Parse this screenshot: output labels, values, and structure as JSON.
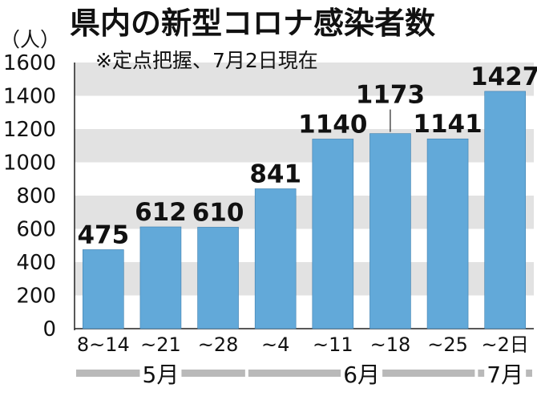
{
  "chart_data": {
    "type": "bar",
    "title": "県内の新型コロナ感染者数",
    "subtitle": "※定点把握、7月2日現在",
    "ylabel": "（人）",
    "ylim": [
      0,
      1600
    ],
    "yticks": [
      0,
      200,
      400,
      600,
      800,
      1000,
      1200,
      1400,
      1600
    ],
    "grid": "alternating horizontal bands",
    "categories": [
      "8~14",
      "~21",
      "~28",
      "~4",
      "~11",
      "~18",
      "~25",
      "~2日"
    ],
    "values": [
      475,
      612,
      610,
      841,
      1140,
      1173,
      1141,
      1427
    ],
    "data_labels": [
      "475",
      "612",
      "610",
      "841",
      "1140",
      "1173",
      "1141",
      "1427"
    ],
    "month_groups": [
      {
        "label": "5月",
        "count": 3
      },
      {
        "label": "6月",
        "count": 4
      },
      {
        "label": "7月",
        "count": 1
      }
    ],
    "colors": {
      "bar": "#62a9d9",
      "band": "#e2e2e2",
      "month_bar": "#b9b9b9"
    }
  }
}
